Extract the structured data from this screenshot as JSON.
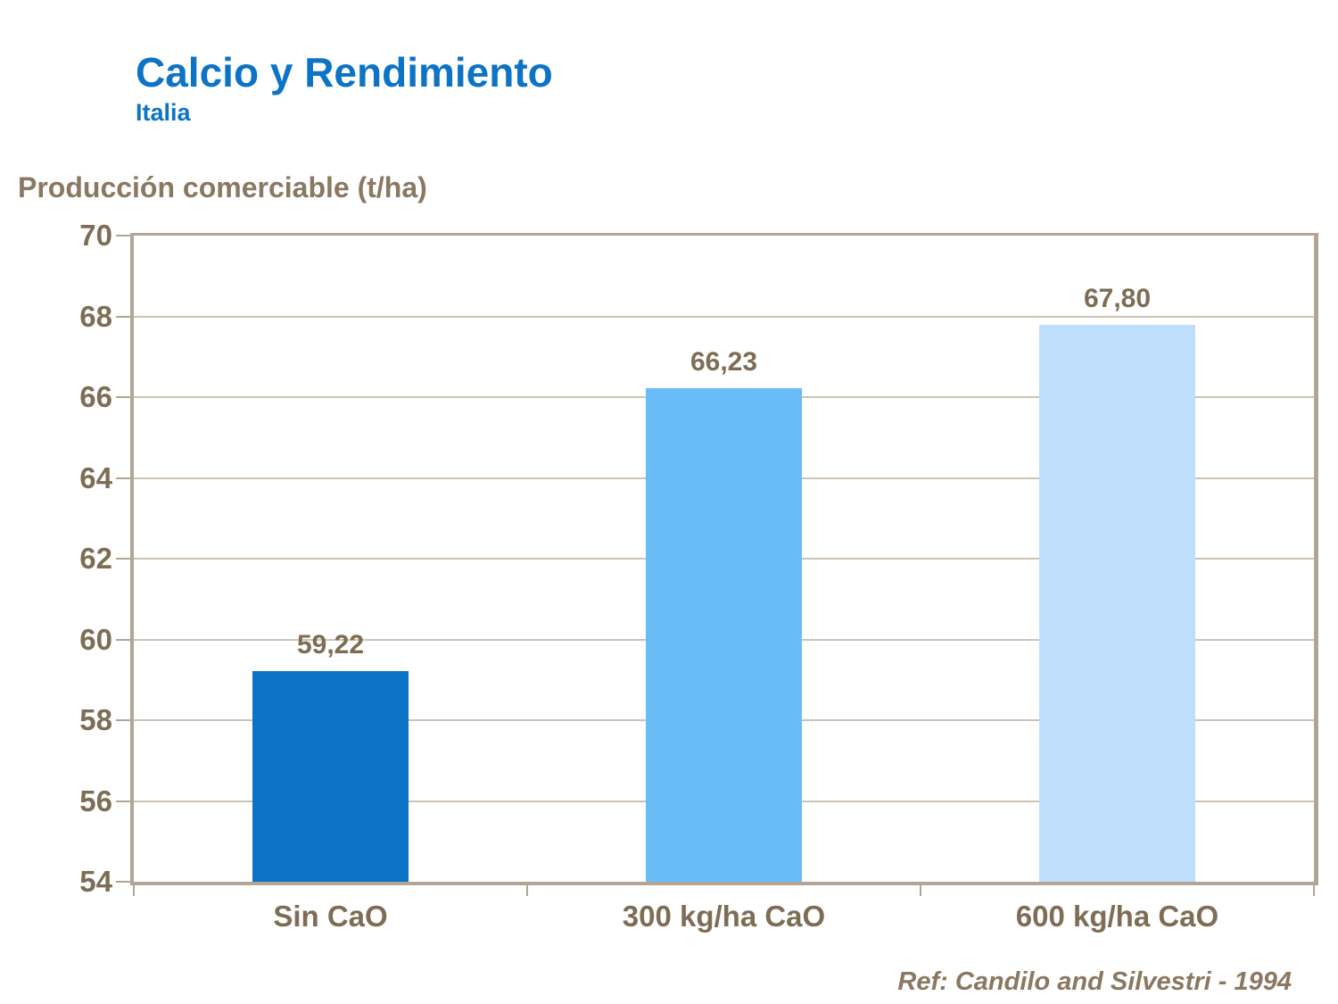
{
  "slide": {
    "title": "Calcio y Rendimiento",
    "subtitle": "Italia",
    "axis_title": "Producción comerciable (t/ha)",
    "reference": "Ref: Candilo and Silvestri - 1994"
  },
  "colors": {
    "title_blue": "#0d73c6",
    "text_brown": "#7e6d55",
    "axis_title_brown": "#8a7862",
    "axis_line": "#b3a596",
    "gridline": "#cdc3b5",
    "bar_colors": [
      "#0b73c4",
      "#68bdf8",
      "#bfdefb"
    ]
  },
  "chart_data": {
    "type": "bar",
    "title": "Calcio y Rendimiento — Italia",
    "categories": [
      "Sin CaO",
      "300 kg/ha CaO",
      "600 kg/ha CaO"
    ],
    "values": [
      59.22,
      66.23,
      67.8
    ],
    "value_labels": [
      "59,22",
      "66,23",
      "67,80"
    ],
    "xlabel": "",
    "ylabel": "Producción comerciable (t/ha)",
    "ylim": [
      54,
      70
    ],
    "ytick_step": 2,
    "yticks": [
      54,
      56,
      58,
      60,
      62,
      64,
      66,
      68,
      70
    ],
    "grid": true,
    "legend": false
  }
}
